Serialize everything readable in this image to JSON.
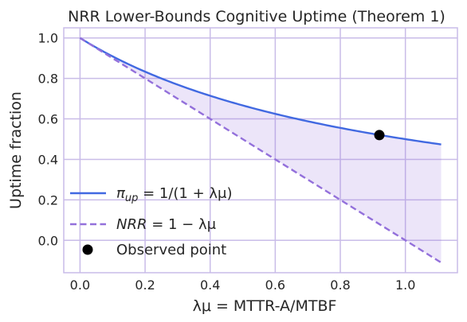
{
  "chart_data": {
    "type": "line",
    "title": "NRR Lower-Bounds Cognitive Uptime (Theorem 1)",
    "xlabel": "λμ = MTTR-A/MTBF",
    "ylabel": "Uptime fraction",
    "xlim": [
      -0.05,
      1.16
    ],
    "ylim": [
      -0.16,
      1.05
    ],
    "x_ticks": [
      0.0,
      0.2,
      0.4,
      0.6,
      0.8,
      1.0
    ],
    "y_ticks": [
      0.0,
      0.2,
      0.4,
      0.6,
      0.8,
      1.0
    ],
    "x_tick_labels": [
      "0.0",
      "0.2",
      "0.4",
      "0.6",
      "0.8",
      "1.0"
    ],
    "y_tick_labels": [
      "0.0",
      "0.2",
      "0.4",
      "0.6",
      "0.8",
      "1.0"
    ],
    "x_range": [
      0.0,
      1.11
    ],
    "grid": true,
    "legend_position": "lower-left",
    "series": [
      {
        "name": "π_up = 1/(1 + λμ)",
        "style": "solid",
        "color": "#4169e1",
        "x": [
          0.0,
          0.1,
          0.2,
          0.3,
          0.4,
          0.5,
          0.6,
          0.7,
          0.8,
          0.9,
          1.0,
          1.11
        ],
        "y": [
          1.0,
          0.909,
          0.833,
          0.769,
          0.714,
          0.667,
          0.625,
          0.588,
          0.556,
          0.526,
          0.5,
          0.474
        ]
      },
      {
        "name": "NRR = 1 − λμ",
        "style": "dashed",
        "color": "#9370db",
        "x": [
          0.0,
          1.11
        ],
        "y": [
          1.0,
          -0.11
        ]
      }
    ],
    "fill_between": {
      "color": "#9370db",
      "opacity": 0.18
    },
    "observed_point": {
      "name": "Observed point",
      "x": 0.92,
      "y": 0.52,
      "color": "#000000"
    },
    "legend": [
      {
        "prefix_italic": "π",
        "sub": "up",
        "rest": " = 1/(1 + λμ)"
      },
      {
        "prefix_italic": "NRR",
        "sub": "",
        "rest": " = 1 − λμ"
      },
      {
        "prefix_italic": "",
        "sub": "",
        "rest": "Observed point"
      }
    ]
  }
}
